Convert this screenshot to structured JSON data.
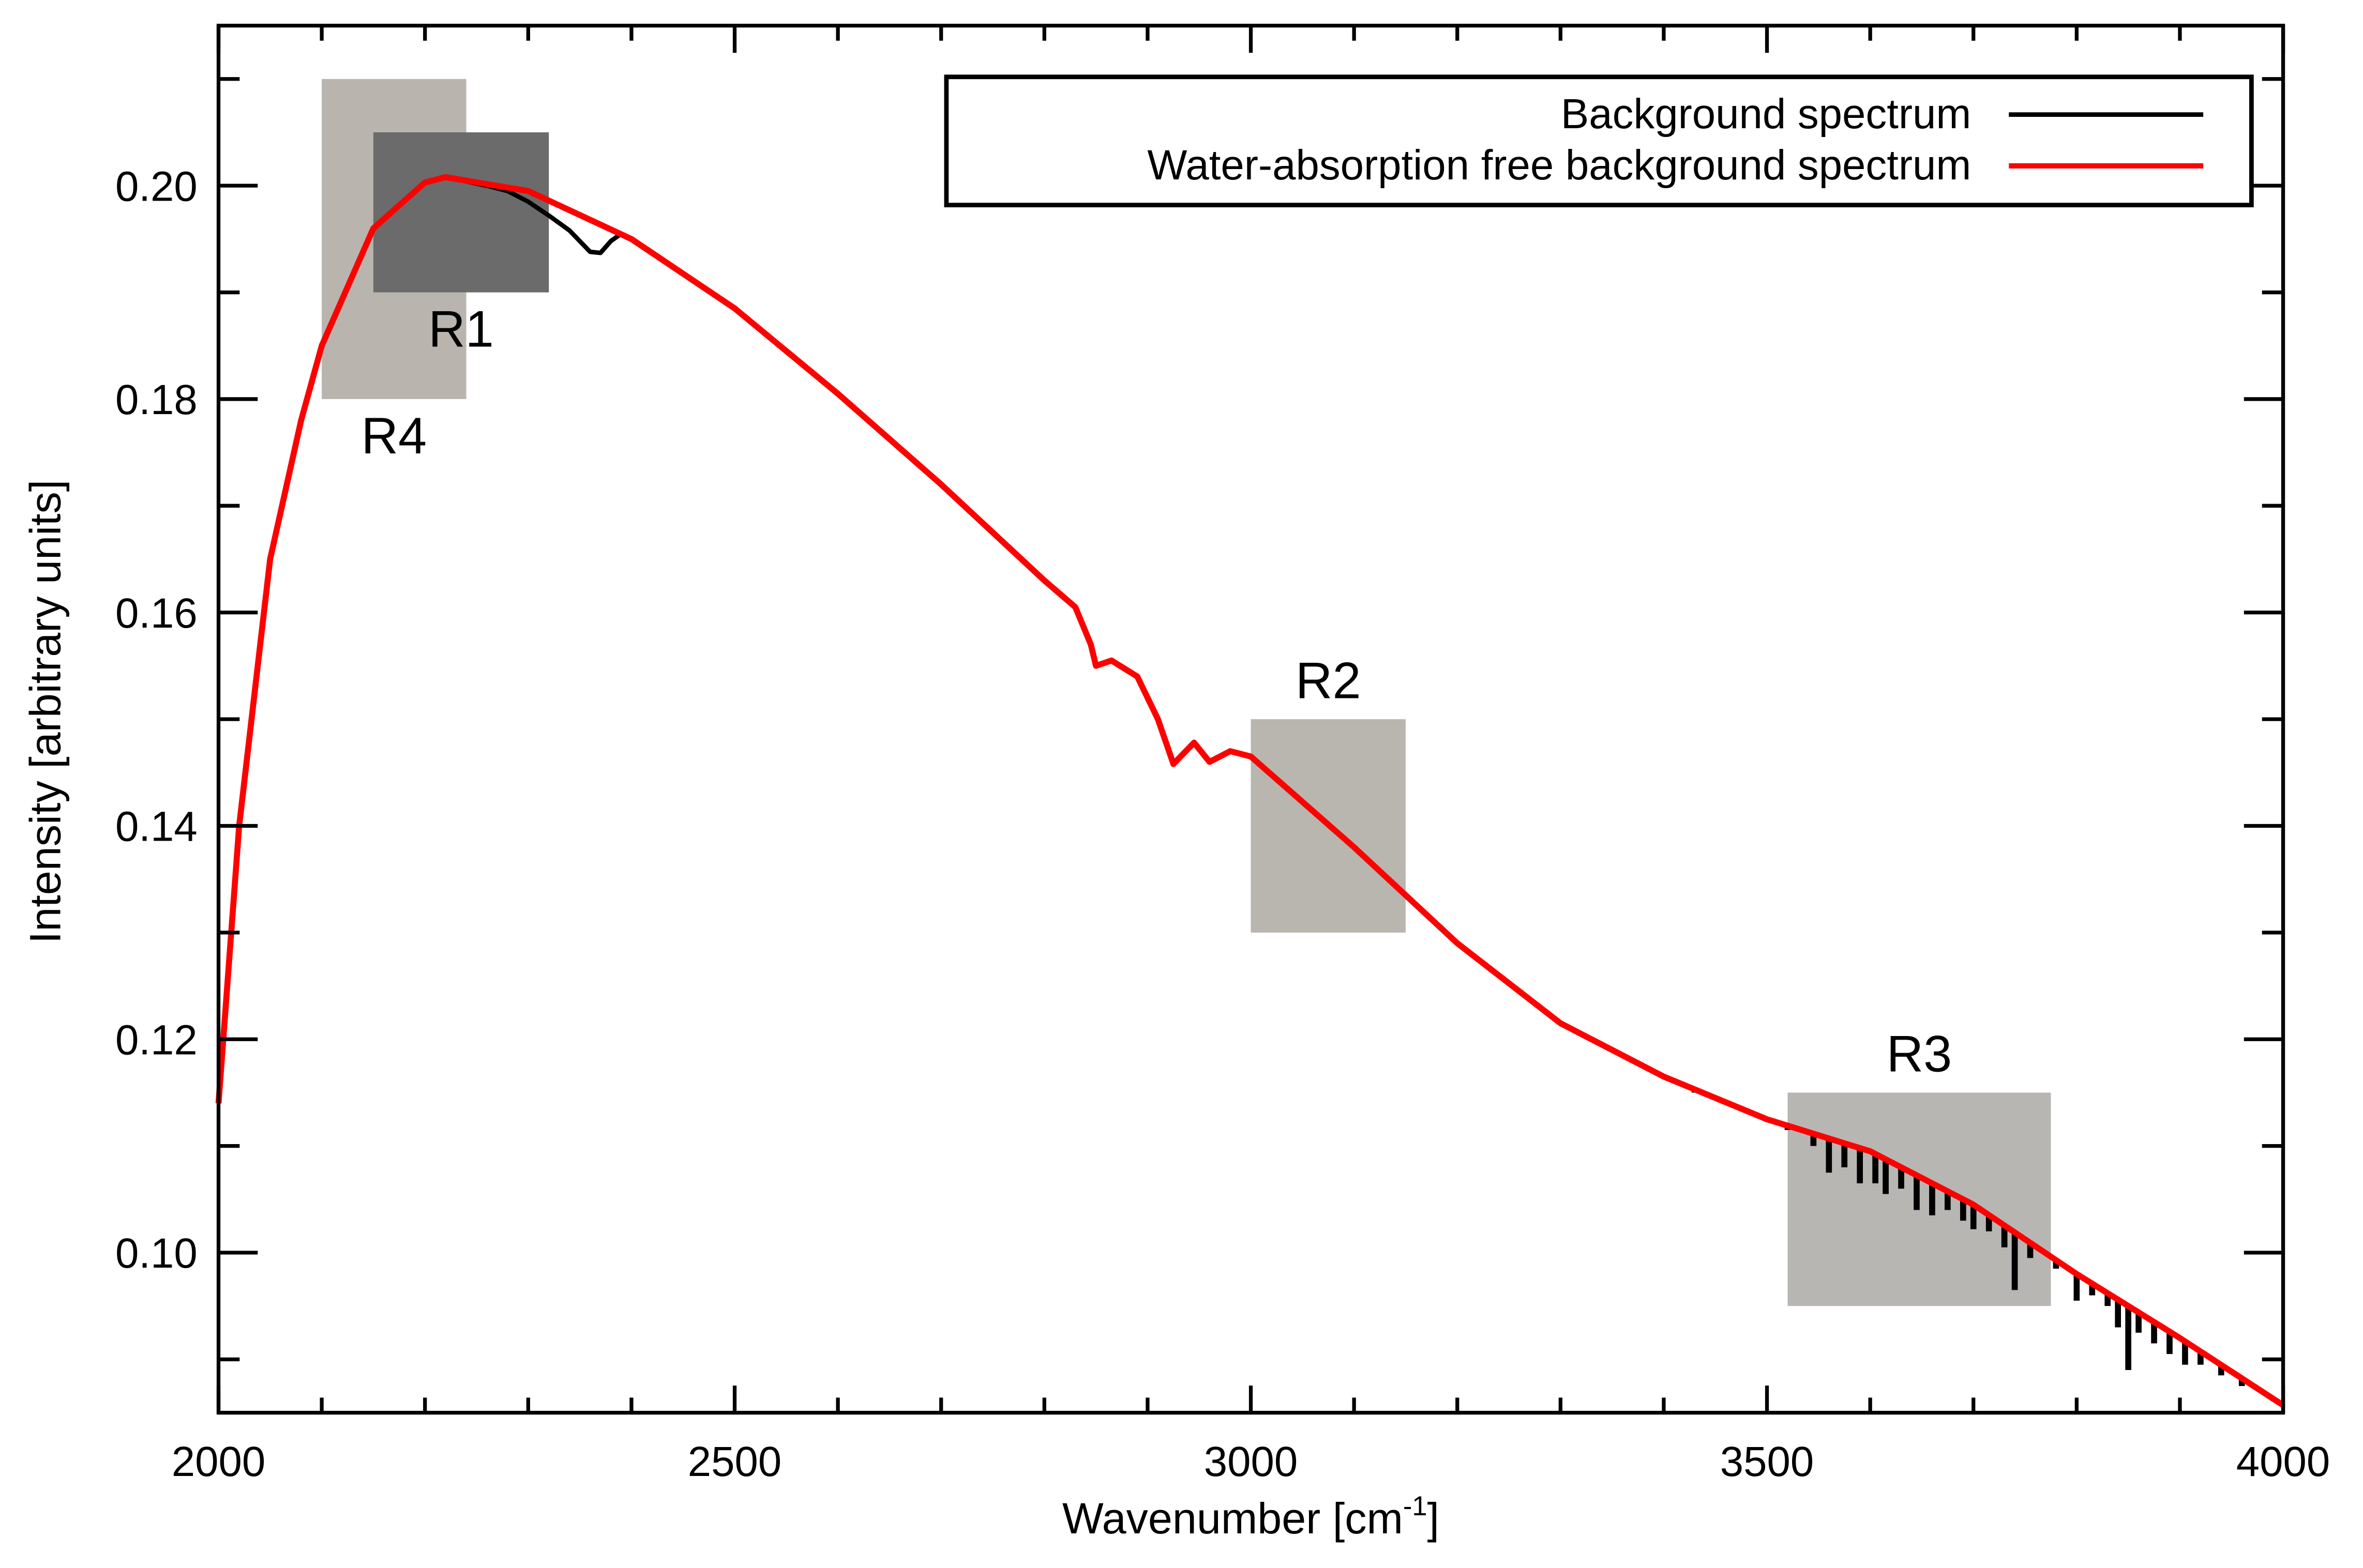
{
  "chart_data": {
    "type": "line",
    "title": "",
    "xlabel": "Wavenumber [cm",
    "xlabel_sup": "-1",
    "xlabel_end": "]",
    "ylabel": "Intensity [arbitrary units]",
    "xlim": [
      2000,
      4000
    ],
    "ylim": [
      0.085,
      0.215
    ],
    "grid": false,
    "legend_position": "top-right",
    "x_ticks": [
      2000,
      2500,
      3000,
      3500,
      4000
    ],
    "x_tick_labels": [
      "2000",
      "2500",
      "3000",
      "3500",
      "4000"
    ],
    "y_ticks": [
      0.1,
      0.12,
      0.14,
      0.16,
      0.18,
      0.2
    ],
    "y_tick_labels": [
      "0.10",
      "0.12",
      "0.14",
      "0.16",
      "0.18",
      "0.20"
    ],
    "series": [
      {
        "name": "Background spectrum",
        "color": "#000000",
        "x": [
          2000,
          2020,
          2050,
          2080,
          2100,
          2150,
          2200,
          2220,
          2260,
          2280,
          2300,
          2320,
          2340,
          2350,
          2360,
          2370,
          2380,
          2390,
          2400,
          2500,
          2600,
          2700,
          2800,
          2830,
          2845,
          2850,
          2865,
          2890,
          2910,
          2925,
          2945,
          2960,
          2980,
          3000,
          3100,
          3200,
          3300,
          3400,
          3500,
          3600,
          3700,
          3800,
          3900,
          4000
        ],
        "y": [
          0.114,
          0.14,
          0.165,
          0.178,
          0.185,
          0.196,
          0.2003,
          0.2008,
          0.2,
          0.1995,
          0.1985,
          0.1972,
          0.1958,
          0.1948,
          0.1938,
          0.1937,
          0.1948,
          0.1955,
          0.195,
          0.1885,
          0.1805,
          0.172,
          0.163,
          0.1605,
          0.157,
          0.155,
          0.1555,
          0.154,
          0.15,
          0.1458,
          0.1478,
          0.146,
          0.147,
          0.1465,
          0.138,
          0.129,
          0.1215,
          0.1165,
          0.1125,
          0.1095,
          0.1045,
          0.098,
          0.092,
          0.0857
        ],
        "absorption_lines": [
          [
            3430,
            0.115
          ],
          [
            3520,
            0.1115
          ],
          [
            3545,
            0.11
          ],
          [
            3560,
            0.1075
          ],
          [
            3575,
            0.108
          ],
          [
            3590,
            0.1065
          ],
          [
            3605,
            0.1065
          ],
          [
            3615,
            0.1055
          ],
          [
            3630,
            0.106
          ],
          [
            3645,
            0.104
          ],
          [
            3660,
            0.1035
          ],
          [
            3675,
            0.104
          ],
          [
            3690,
            0.103
          ],
          [
            3700,
            0.1022
          ],
          [
            3715,
            0.102
          ],
          [
            3730,
            0.1005
          ],
          [
            3740,
            0.0965
          ],
          [
            3755,
            0.0995
          ],
          [
            3780,
            0.0985
          ],
          [
            3800,
            0.0955
          ],
          [
            3815,
            0.096
          ],
          [
            3830,
            0.095
          ],
          [
            3840,
            0.093
          ],
          [
            3850,
            0.089
          ],
          [
            3860,
            0.0925
          ],
          [
            3875,
            0.0915
          ],
          [
            3890,
            0.0905
          ],
          [
            3905,
            0.0895
          ],
          [
            3920,
            0.0895
          ],
          [
            3940,
            0.0885
          ],
          [
            3960,
            0.0875
          ]
        ]
      },
      {
        "name": "Water-absorption free background spectrum",
        "color": "#ff0000",
        "x": [
          2000,
          2020,
          2050,
          2080,
          2100,
          2150,
          2200,
          2220,
          2300,
          2400,
          2500,
          2600,
          2700,
          2800,
          2830,
          2845,
          2850,
          2865,
          2890,
          2910,
          2925,
          2945,
          2960,
          2980,
          3000,
          3100,
          3200,
          3300,
          3400,
          3500,
          3600,
          3700,
          3800,
          3900,
          4000
        ],
        "y": [
          0.114,
          0.14,
          0.165,
          0.178,
          0.185,
          0.196,
          0.2003,
          0.2008,
          0.1995,
          0.195,
          0.1885,
          0.1805,
          0.172,
          0.163,
          0.1605,
          0.157,
          0.155,
          0.1555,
          0.154,
          0.15,
          0.1458,
          0.1478,
          0.146,
          0.147,
          0.1465,
          0.138,
          0.129,
          0.1215,
          0.1165,
          0.1125,
          0.1095,
          0.1045,
          0.098,
          0.092,
          0.0857
        ]
      }
    ],
    "regions": [
      {
        "label": "R4",
        "x": [
          2100,
          2240
        ],
        "y": [
          0.18,
          0.21
        ],
        "color": "#b9b5ae",
        "label_pos": "below"
      },
      {
        "label": "R1",
        "x": [
          2150,
          2320
        ],
        "y": [
          0.19,
          0.205
        ],
        "color": "#6b6b6b",
        "label_pos": "below"
      },
      {
        "label": "R2",
        "x": [
          3000,
          3150
        ],
        "y": [
          0.13,
          0.15
        ],
        "color": "#b8b6ae",
        "label_pos": "above"
      },
      {
        "label": "R3",
        "x": [
          3520,
          3775
        ],
        "y": [
          0.095,
          0.115
        ],
        "color": "#b8b6b2",
        "label_pos": "above"
      }
    ]
  }
}
